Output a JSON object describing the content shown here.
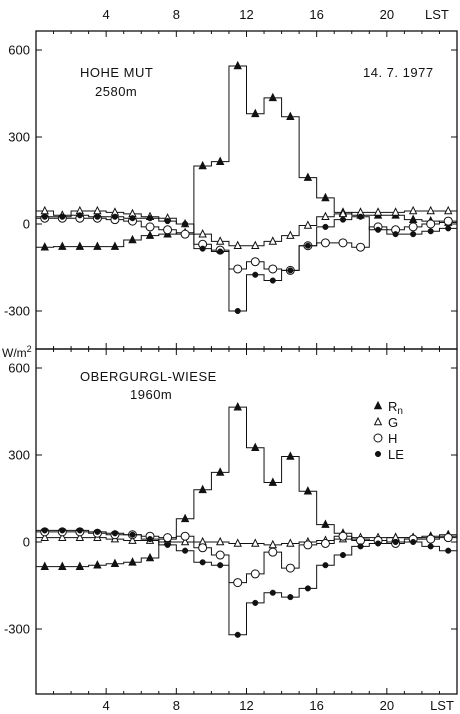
{
  "chart_data": [
    {
      "type": "line",
      "title": "HOHE MUT",
      "subtitle": "2580m",
      "date": "14. 7. 1977",
      "xlabel": "LST",
      "ylabel": "",
      "xlim": [
        0,
        24
      ],
      "ylim": [
        -380,
        660
      ],
      "x_ticks": [
        4,
        8,
        12,
        16,
        20
      ],
      "y_ticks": [
        -300,
        0,
        300,
        600
      ],
      "y_tick_labels": [
        "-300",
        "0",
        "300",
        "600"
      ],
      "grid": false,
      "series": [
        {
          "name": "R",
          "name_sub": "n",
          "marker": "filled-triangle",
          "x": [
            0.5,
            1.5,
            2.5,
            3.5,
            4.5,
            5.5,
            6.5,
            7.5,
            8.5,
            9.5,
            10.5,
            11.5,
            12.5,
            13.5,
            14.5,
            15.5,
            16.5,
            17.5,
            18.5,
            19.5,
            20.5,
            21.5,
            22.5,
            23.5
          ],
          "values": [
            -80,
            -78,
            -78,
            -78,
            -78,
            -55,
            -40,
            -35,
            -30,
            200,
            215,
            545,
            380,
            435,
            370,
            160,
            90,
            40,
            30,
            30,
            30,
            15,
            10,
            5
          ]
        },
        {
          "name": "G",
          "marker": "open-triangle",
          "x": [
            0.5,
            1.5,
            2.5,
            3.5,
            4.5,
            5.5,
            6.5,
            7.5,
            8.5,
            9.5,
            10.5,
            11.5,
            12.5,
            13.5,
            14.5,
            15.5,
            16.5,
            17.5,
            18.5,
            19.5,
            20.5,
            21.5,
            22.5,
            23.5
          ],
          "values": [
            45,
            30,
            45,
            45,
            40,
            35,
            25,
            20,
            0,
            -35,
            -60,
            -75,
            -75,
            -60,
            -40,
            -5,
            25,
            35,
            40,
            40,
            40,
            45,
            45,
            45
          ]
        },
        {
          "name": "H",
          "marker": "open-circle",
          "x": [
            0.5,
            1.5,
            2.5,
            3.5,
            4.5,
            5.5,
            6.5,
            7.5,
            8.5,
            9.5,
            10.5,
            11.5,
            12.5,
            13.5,
            14.5,
            15.5,
            16.5,
            17.5,
            18.5,
            19.5,
            20.5,
            21.5,
            22.5,
            23.5
          ],
          "values": [
            20,
            20,
            20,
            20,
            15,
            10,
            -10,
            -20,
            -35,
            -70,
            -90,
            -155,
            -130,
            -155,
            -160,
            -75,
            -65,
            -65,
            -80,
            -10,
            -20,
            -10,
            0,
            10
          ]
        },
        {
          "name": "LE",
          "marker": "filled-circle",
          "x": [
            0.5,
            1.5,
            2.5,
            3.5,
            4.5,
            5.5,
            6.5,
            7.5,
            8.5,
            9.5,
            10.5,
            11.5,
            12.5,
            13.5,
            14.5,
            15.5,
            16.5,
            17.5,
            18.5,
            19.5,
            20.5,
            21.5,
            22.5,
            23.5
          ],
          "values": [
            25,
            25,
            30,
            25,
            25,
            20,
            20,
            10,
            0,
            -85,
            -95,
            -300,
            -175,
            -195,
            -160,
            -75,
            -10,
            15,
            25,
            -20,
            -35,
            -35,
            -25,
            -15
          ]
        }
      ]
    },
    {
      "type": "line",
      "title": "OBERGURGL-WIESE",
      "subtitle": "1960m",
      "xlabel": "LST",
      "ylabel": "",
      "xlim": [
        0,
        24
      ],
      "ylim": [
        -500,
        660
      ],
      "x_ticks": [
        4,
        8,
        12,
        16,
        20,
        24
      ],
      "x_tick_labels": [
        "4",
        "8",
        "12",
        "16",
        "20",
        "LST"
      ],
      "y_ticks": [
        -300,
        0,
        300,
        600
      ],
      "y_tick_labels": [
        "-300",
        "0",
        "300",
        "600"
      ],
      "grid": false,
      "legend_position": "right",
      "series": [
        {
          "name": "R",
          "name_sub": "n",
          "marker": "filled-triangle",
          "x": [
            0.5,
            1.5,
            2.5,
            3.5,
            4.5,
            5.5,
            6.5,
            7.5,
            8.5,
            9.5,
            10.5,
            11.5,
            12.5,
            13.5,
            14.5,
            15.5,
            16.5,
            17.5,
            18.5,
            19.5,
            20.5,
            21.5,
            22.5,
            23.5
          ],
          "values": [
            -85,
            -85,
            -85,
            -80,
            -75,
            -70,
            -55,
            10,
            80,
            180,
            240,
            465,
            325,
            205,
            295,
            175,
            60,
            30,
            10,
            5,
            15,
            15,
            20,
            25
          ]
        },
        {
          "name": "G",
          "marker": "open-triangle",
          "x": [
            0.5,
            1.5,
            2.5,
            3.5,
            4.5,
            5.5,
            6.5,
            7.5,
            8.5,
            9.5,
            10.5,
            11.5,
            12.5,
            13.5,
            14.5,
            15.5,
            16.5,
            17.5,
            18.5,
            19.5,
            20.5,
            21.5,
            22.5,
            23.5
          ],
          "values": [
            15,
            15,
            15,
            15,
            10,
            5,
            5,
            0,
            0,
            0,
            0,
            -5,
            -5,
            -10,
            -5,
            0,
            5,
            10,
            15,
            15,
            15,
            15,
            15,
            20
          ]
        },
        {
          "name": "H",
          "marker": "open-circle",
          "x": [
            0.5,
            1.5,
            2.5,
            3.5,
            4.5,
            5.5,
            6.5,
            7.5,
            8.5,
            9.5,
            10.5,
            11.5,
            12.5,
            13.5,
            14.5,
            15.5,
            16.5,
            17.5,
            18.5,
            19.5,
            20.5,
            21.5,
            22.5,
            23.5
          ],
          "values": [
            35,
            35,
            35,
            30,
            25,
            25,
            20,
            15,
            20,
            -20,
            -45,
            -140,
            -110,
            -35,
            -90,
            -10,
            -5,
            20,
            5,
            5,
            -5,
            10,
            10,
            15
          ]
        },
        {
          "name": "LE",
          "marker": "filled-circle",
          "x": [
            0.5,
            1.5,
            2.5,
            3.5,
            4.5,
            5.5,
            6.5,
            7.5,
            8.5,
            9.5,
            10.5,
            11.5,
            12.5,
            13.5,
            14.5,
            15.5,
            16.5,
            17.5,
            18.5,
            19.5,
            20.5,
            21.5,
            22.5,
            23.5
          ],
          "values": [
            40,
            40,
            40,
            35,
            30,
            25,
            10,
            -10,
            -30,
            -70,
            -80,
            -320,
            -210,
            -175,
            -190,
            -160,
            -80,
            -45,
            -15,
            -5,
            0,
            0,
            -15,
            -30
          ]
        }
      ]
    }
  ],
  "unit_label": "W/m",
  "unit_sup": "2"
}
